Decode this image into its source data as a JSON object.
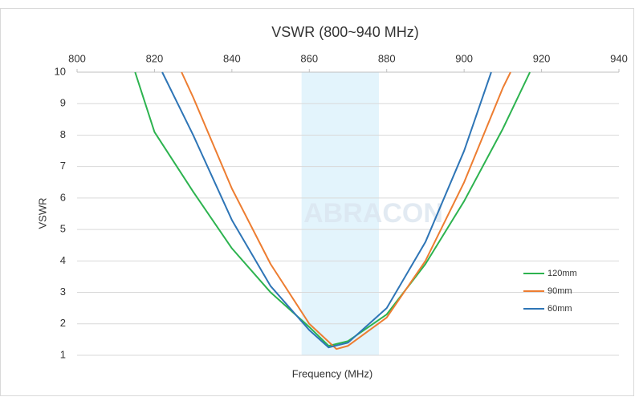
{
  "chart_data": {
    "type": "line",
    "title": "VSWR (800~940 MHz)",
    "x_label": "Frequency (MHz)",
    "y_label": "VSWR",
    "watermark": "ABRACON",
    "xlim": [
      800,
      940
    ],
    "xticks": [
      800,
      820,
      840,
      860,
      880,
      900,
      920,
      940
    ],
    "ylim": [
      1,
      10
    ],
    "yticks": [
      1,
      2,
      3,
      4,
      5,
      6,
      7,
      8,
      9,
      10
    ],
    "grid": true,
    "band": [
      858,
      878
    ],
    "band_color": "#e3f4fc",
    "legend": "lower right",
    "series": [
      {
        "name": "120mm",
        "color": "#2db34f",
        "x": [
          815,
          820,
          830,
          840,
          850,
          860,
          865,
          870,
          880,
          890,
          900,
          910,
          917
        ],
        "values": [
          10,
          8.1,
          6.2,
          4.4,
          3.0,
          1.9,
          1.3,
          1.45,
          2.3,
          3.9,
          5.9,
          8.2,
          10
        ]
      },
      {
        "name": "90mm",
        "color": "#ed7d31",
        "x": [
          827,
          830,
          840,
          850,
          860,
          867,
          870,
          880,
          890,
          900,
          910,
          912
        ],
        "values": [
          10,
          9.2,
          6.3,
          3.9,
          2.0,
          1.2,
          1.3,
          2.2,
          4.0,
          6.5,
          9.5,
          10
        ]
      },
      {
        "name": "60mm",
        "color": "#2e75b6",
        "x": [
          822,
          830,
          840,
          850,
          860,
          865,
          870,
          880,
          890,
          900,
          907
        ],
        "values": [
          10,
          8.0,
          5.3,
          3.2,
          1.8,
          1.25,
          1.4,
          2.5,
          4.6,
          7.5,
          10
        ]
      }
    ]
  }
}
